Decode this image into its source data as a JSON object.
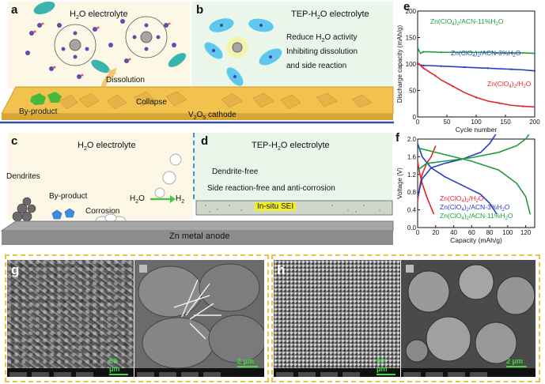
{
  "panels": {
    "a": {
      "label": "a",
      "title": "H",
      "title_sub": "2",
      "title_rest": "O electrolyte",
      "dissolution": "Dissolution",
      "collapse": "Collapse",
      "byproduct": "By-product",
      "cathode": "V",
      "cathode_sub1": "2",
      "cathode_mid": "O",
      "cathode_sub2": "5",
      "cathode_rest": " cathode"
    },
    "b": {
      "label": "b",
      "title": "TEP-H",
      "title_sub": "2",
      "title_rest": "O electrolyte",
      "line1": "Reduce H",
      "line1_sub": "2",
      "line1_rest": "O activity",
      "line2": "Inhibiting dissolution",
      "line3": "and side reaction"
    },
    "c": {
      "label": "c",
      "title": "H",
      "title_sub": "2",
      "title_rest": "O electrolyte",
      "dendrites": "Dendrites",
      "byproduct": "By-product",
      "corrosion": "Corrosion",
      "h2o": "H",
      "h2o_sub": "2",
      "h2o_rest": "O",
      "h2": "H",
      "h2_sub": "2"
    },
    "d": {
      "label": "d",
      "title": "TEP-H",
      "title_sub": "2",
      "title_rest": "O electrolyte",
      "line1": "Dendrite-free",
      "line2": "Side reaction-free and anti-corrosion",
      "sei": "In-situ SEI"
    },
    "anode": "Zn metal anode",
    "g": {
      "label": "g",
      "scale1": "50 μm",
      "scale2": "2 μm"
    },
    "h": {
      "label": "h",
      "scale1": "50 μm",
      "scale2": "2 μm"
    }
  },
  "chart_e": {
    "label": "e",
    "type": "line",
    "xlabel": "Cycle number",
    "ylabel": "Discharge capacity (mAh/g)",
    "xlim": [
      0,
      200
    ],
    "ylim": [
      0,
      200
    ],
    "xticks": [
      0,
      50,
      100,
      150,
      200
    ],
    "yticks": [
      0,
      50,
      100,
      150,
      200
    ],
    "series": [
      {
        "name": "Zn(ClO4)2/ACN-11%H2O",
        "label_parts": [
          "Zn(ClO",
          "4",
          ")",
          "2",
          "/ACN-11%H",
          "2",
          "O"
        ],
        "color": "#1e9e3a",
        "x": [
          0,
          5,
          10,
          20,
          40,
          60,
          80,
          100,
          120,
          140,
          160,
          180,
          200
        ],
        "y": [
          130,
          120,
          123,
          123,
          122,
          122,
          122,
          122,
          122,
          121,
          121,
          121,
          120
        ]
      },
      {
        "name": "Zn(ClO4)2/ACN-3%H2O",
        "label_parts": [
          "Zn(ClO",
          "4",
          ")",
          "2",
          "/ACN-3%H",
          "2",
          "O"
        ],
        "color": "#2a3cc4",
        "x": [
          0,
          5,
          10,
          20,
          40,
          60,
          80,
          100,
          120,
          140,
          160,
          180,
          200
        ],
        "y": [
          100,
          98,
          97,
          97,
          96,
          95,
          94,
          93,
          92,
          91,
          90,
          89,
          87
        ]
      },
      {
        "name": "Zn(ClO4)2/H2O",
        "label_parts": [
          "Zn(ClO",
          "4",
          ")",
          "2",
          "/H",
          "2",
          "O"
        ],
        "color": "#e02828",
        "x": [
          0,
          5,
          10,
          20,
          30,
          40,
          60,
          80,
          100,
          120,
          140,
          160,
          180,
          200
        ],
        "y": [
          102,
          97,
          92,
          85,
          78,
          70,
          58,
          46,
          37,
          30,
          26,
          22,
          20,
          19
        ]
      }
    ]
  },
  "chart_f": {
    "label": "f",
    "type": "line",
    "xlabel": "Capacity (mAh/g)",
    "ylabel": "Voltage (V)",
    "xlim": [
      0,
      130
    ],
    "ylim": [
      0,
      2.0
    ],
    "xticks": [
      0,
      20,
      40,
      60,
      80,
      100,
      120
    ],
    "yticks": [
      0,
      0.4,
      0.8,
      1.2,
      1.6,
      2.0
    ],
    "series": [
      {
        "name": "Zn(ClO4)2/H2O",
        "label_parts": [
          "Zn(ClO",
          "4",
          ")",
          "2",
          "/H",
          "2",
          "O"
        ],
        "color": "#e02828",
        "charge": {
          "x": [
            0,
            2,
            5,
            10,
            15,
            20
          ],
          "y": [
            0.6,
            0.9,
            1.2,
            1.45,
            1.6,
            1.85
          ]
        },
        "discharge": {
          "x": [
            0,
            2,
            5,
            10,
            15,
            18
          ],
          "y": [
            1.5,
            1.25,
            1.0,
            0.7,
            0.45,
            0.3
          ]
        }
      },
      {
        "name": "Zn(ClO4)2/ACN-3%H2O",
        "label_parts": [
          "Zn(ClO",
          "4",
          ")",
          "2",
          "/ACN-3%H",
          "2",
          "O"
        ],
        "color": "#2a3cc4",
        "charge": {
          "x": [
            0,
            5,
            15,
            30,
            50,
            70,
            80,
            88
          ],
          "y": [
            0.7,
            1.1,
            1.35,
            1.45,
            1.55,
            1.7,
            1.9,
            2.15
          ]
        },
        "discharge": {
          "x": [
            0,
            5,
            15,
            30,
            50,
            70,
            80,
            88
          ],
          "y": [
            1.9,
            1.6,
            1.35,
            1.15,
            0.95,
            0.75,
            0.55,
            0.3
          ]
        }
      },
      {
        "name": "Zn(ClO4)2/ACN-11%H2O",
        "label_parts": [
          "Zn(ClO",
          "4",
          ")",
          "2",
          "/ACN-11%H",
          "2",
          "O"
        ],
        "color": "#1e9e3a",
        "charge": {
          "x": [
            0,
            10,
            30,
            60,
            90,
            110,
            120,
            125
          ],
          "y": [
            1.3,
            1.45,
            1.5,
            1.58,
            1.7,
            1.85,
            2.0,
            2.15
          ]
        },
        "discharge": {
          "x": [
            0,
            10,
            30,
            60,
            90,
            110,
            120,
            125
          ],
          "y": [
            1.8,
            1.75,
            1.65,
            1.5,
            1.3,
            1.0,
            0.7,
            0.3
          ]
        }
      }
    ]
  }
}
